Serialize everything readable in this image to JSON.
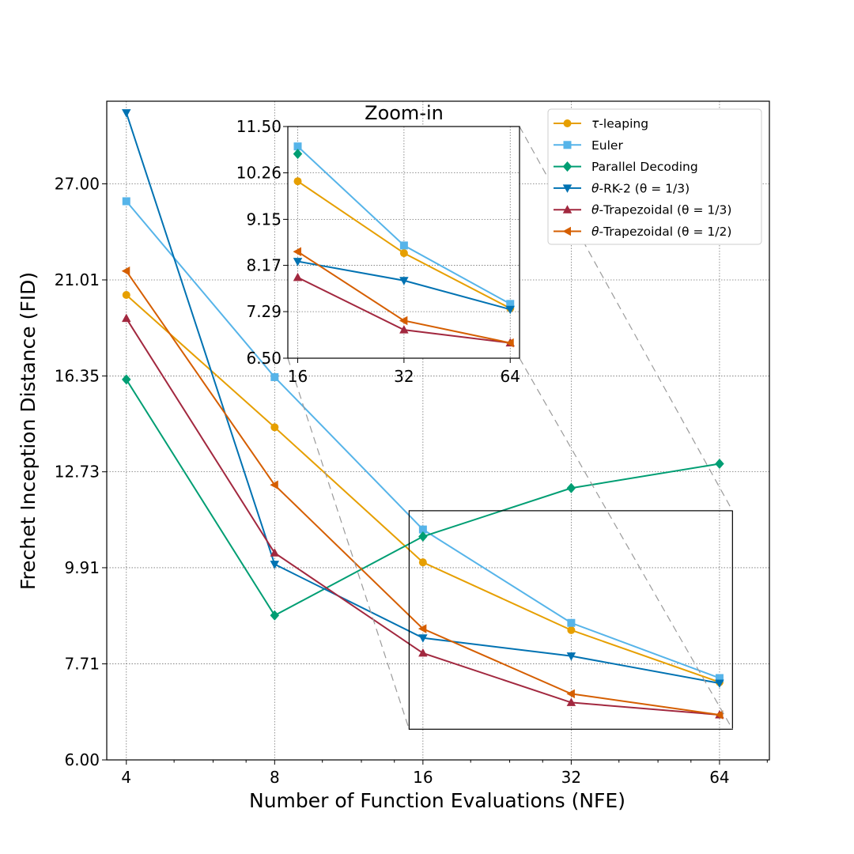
{
  "chart_data": {
    "type": "line",
    "xlabel": "Number of Function Evaluations (NFE)",
    "ylabel": "Frechet Inception Distance (FID)",
    "x_scale": "log2",
    "y_scale": "log",
    "x": [
      4,
      8,
      16,
      32,
      64
    ],
    "x_tick_labels": [
      "4",
      "8",
      "16",
      "32",
      "64"
    ],
    "ylim": [
      6.0,
      33.5
    ],
    "y_ticks": [
      6.0,
      7.71,
      9.91,
      12.73,
      16.35,
      21.01,
      27.0
    ],
    "y_tick_labels": [
      "6.00",
      "7.71",
      "9.91",
      "12.73",
      "16.35",
      "21.01",
      "27.00"
    ],
    "grid": true,
    "legend_position": "top-right",
    "series": [
      {
        "name": "τ-leaping",
        "label_math": "τ",
        "label_rest": "-leaping",
        "color": "#E69F00",
        "marker": "circle",
        "values": [
          20.2,
          14.3,
          10.05,
          8.42,
          7.35
        ]
      },
      {
        "name": "Euler",
        "label_math": "",
        "label_rest": "Euler",
        "color": "#56B4E9",
        "marker": "square",
        "values": [
          25.8,
          16.3,
          10.95,
          8.58,
          7.43
        ]
      },
      {
        "name": "Parallel Decoding",
        "label_math": "",
        "label_rest": "Parallel Decoding",
        "color": "#009E73",
        "marker": "diamond",
        "values": [
          16.2,
          8.75,
          10.75,
          12.2,
          13.0
        ]
      },
      {
        "name": "θ-RK-2 (θ = 1/3)",
        "label_math": "θ",
        "label_rest": "-RK-2 (θ = 1/3)",
        "color": "#0072B2",
        "marker": "triangle-down",
        "values": [
          32.5,
          10.0,
          8.25,
          7.87,
          7.33
        ]
      },
      {
        "name": "θ-Trapezoidal (θ = 1/3)",
        "label_math": "θ",
        "label_rest": "-Trapezoidal (θ = 1/3)",
        "color": "#A2283F",
        "marker": "triangle-up",
        "values": [
          19.0,
          10.3,
          7.93,
          6.97,
          6.75
        ]
      },
      {
        "name": "θ-Trapezoidal (θ = 1/2)",
        "label_math": "θ",
        "label_rest": "-Trapezoidal (θ = 1/2)",
        "color": "#D55E00",
        "marker": "triangle-left",
        "values": [
          21.5,
          12.3,
          8.45,
          7.13,
          6.75
        ]
      }
    ],
    "zoom_box": {
      "x_range": [
        15,
        68
      ],
      "y_range": [
        6.5,
        11.5
      ]
    },
    "inset": {
      "title": "Zoom-in",
      "x": [
        16,
        32,
        64
      ],
      "x_tick_labels": [
        "16",
        "32",
        "64"
      ],
      "xlim": [
        15,
        68
      ],
      "ylim": [
        6.5,
        11.5
      ],
      "y_ticks": [
        6.5,
        7.29,
        8.17,
        9.15,
        10.26,
        11.5
      ],
      "y_tick_labels": [
        "6.50",
        "7.29",
        "8.17",
        "9.15",
        "10.26",
        "11.50"
      ]
    }
  }
}
